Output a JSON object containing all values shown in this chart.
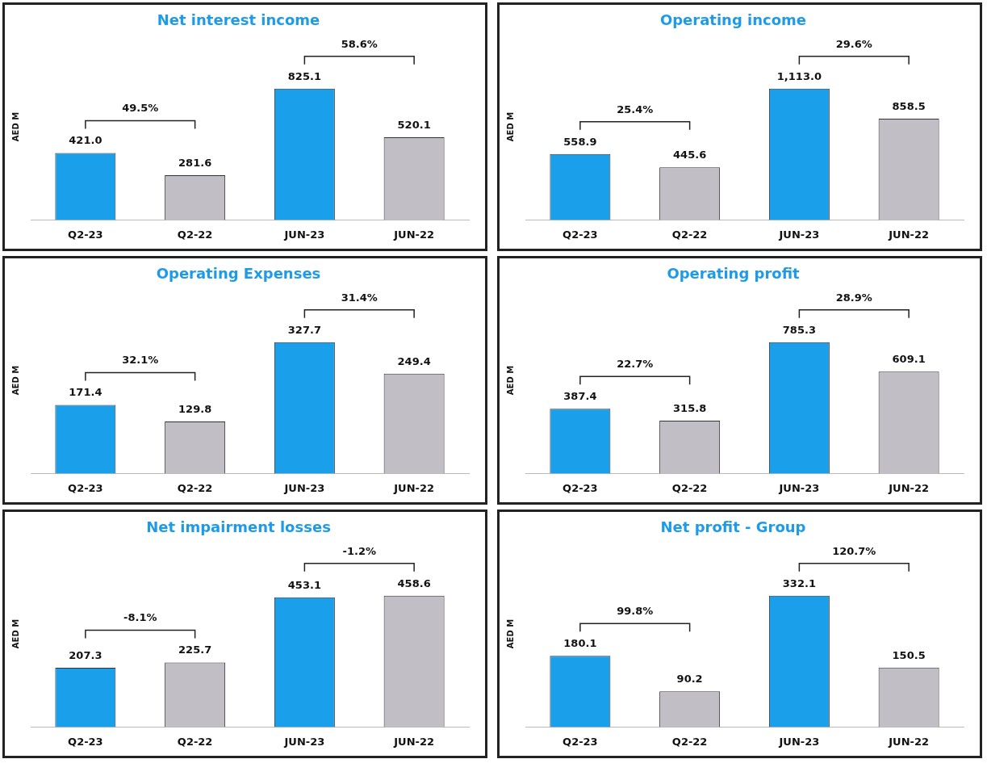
{
  "chart_data": [
    {
      "type": "bar",
      "title": "Net interest income",
      "ylabel": "AED M",
      "categories": [
        "Q2-23",
        "Q2-22",
        "JUN-23",
        "JUN-22"
      ],
      "values": [
        421.0,
        281.6,
        825.1,
        520.1
      ],
      "value_labels": [
        "421.0",
        "281.6",
        "825.1",
        "520.1"
      ],
      "colors": [
        "#1a9fea",
        "#c2bec6",
        "#1a9fea",
        "#c2bec6"
      ],
      "annotations": [
        "49.5%",
        "58.6%"
      ]
    },
    {
      "type": "bar",
      "title": "Operating income",
      "ylabel": "AED M",
      "categories": [
        "Q2-23",
        "Q2-22",
        "JUN-23",
        "JUN-22"
      ],
      "values": [
        558.9,
        445.6,
        1113.0,
        858.5
      ],
      "value_labels": [
        "558.9",
        "445.6",
        "1,113.0",
        "858.5"
      ],
      "colors": [
        "#1a9fea",
        "#c2bec6",
        "#1a9fea",
        "#c2bec6"
      ],
      "annotations": [
        "25.4%",
        "29.6%"
      ]
    },
    {
      "type": "bar",
      "title": "Operating Expenses",
      "ylabel": "AED M",
      "categories": [
        "Q2-23",
        "Q2-22",
        "JUN-23",
        "JUN-22"
      ],
      "values": [
        171.4,
        129.8,
        327.7,
        249.4
      ],
      "value_labels": [
        "171.4",
        "129.8",
        "327.7",
        "249.4"
      ],
      "colors": [
        "#1a9fea",
        "#c2bec6",
        "#1a9fea",
        "#c2bec6"
      ],
      "annotations": [
        "32.1%",
        "31.4%"
      ]
    },
    {
      "type": "bar",
      "title": "Operating profit",
      "ylabel": "AED M",
      "categories": [
        "Q2-23",
        "Q2-22",
        "JUN-23",
        "JUN-22"
      ],
      "values": [
        387.4,
        315.8,
        785.3,
        609.1
      ],
      "value_labels": [
        "387.4",
        "315.8",
        "785.3",
        "609.1"
      ],
      "colors": [
        "#1a9fea",
        "#c2bec6",
        "#1a9fea",
        "#c2bec6"
      ],
      "annotations": [
        "22.7%",
        "28.9%"
      ]
    },
    {
      "type": "bar",
      "title": "Net impairment losses",
      "ylabel": "AED M",
      "categories": [
        "Q2-23",
        "Q2-22",
        "JUN-23",
        "JUN-22"
      ],
      "values": [
        207.3,
        225.7,
        453.1,
        458.6
      ],
      "value_labels": [
        "207.3",
        "225.7",
        "453.1",
        "458.6"
      ],
      "colors": [
        "#1a9fea",
        "#c2bec6",
        "#1a9fea",
        "#c2bec6"
      ],
      "annotations": [
        "-8.1%",
        "-1.2%"
      ]
    },
    {
      "type": "bar",
      "title": "Net profit - Group",
      "ylabel": "AED M",
      "categories": [
        "Q2-23",
        "Q2-22",
        "JUN-23",
        "JUN-22"
      ],
      "values": [
        180.1,
        90.2,
        332.1,
        150.5
      ],
      "value_labels": [
        "180.1",
        "90.2",
        "332.1",
        "150.5"
      ],
      "colors": [
        "#1a9fea",
        "#c2bec6",
        "#1a9fea",
        "#c2bec6"
      ],
      "annotations": [
        "99.8%",
        "120.7%"
      ]
    }
  ]
}
